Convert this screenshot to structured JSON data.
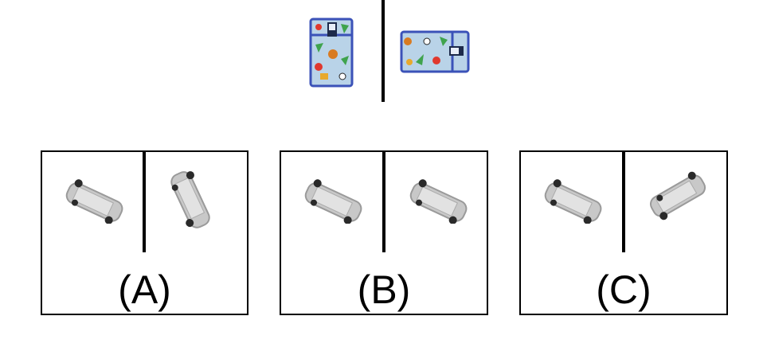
{
  "reference": {
    "left_object": "lunch-bag-upright",
    "right_object": "lunch-bag-rotated"
  },
  "options": [
    {
      "label": "(A)",
      "left_object": "toy-cart",
      "right_object": "toy-cart-rotated"
    },
    {
      "label": "(B)",
      "left_object": "toy-cart",
      "right_object": "toy-cart-same"
    },
    {
      "label": "(C)",
      "left_object": "toy-cart",
      "right_object": "toy-cart-mirrored"
    }
  ],
  "colors": {
    "bag_body": "#b9d3e8",
    "bag_trim": "#3b52b8",
    "cart_body": "#c8c8c8",
    "cart_wheels": "#2a2a2a"
  }
}
